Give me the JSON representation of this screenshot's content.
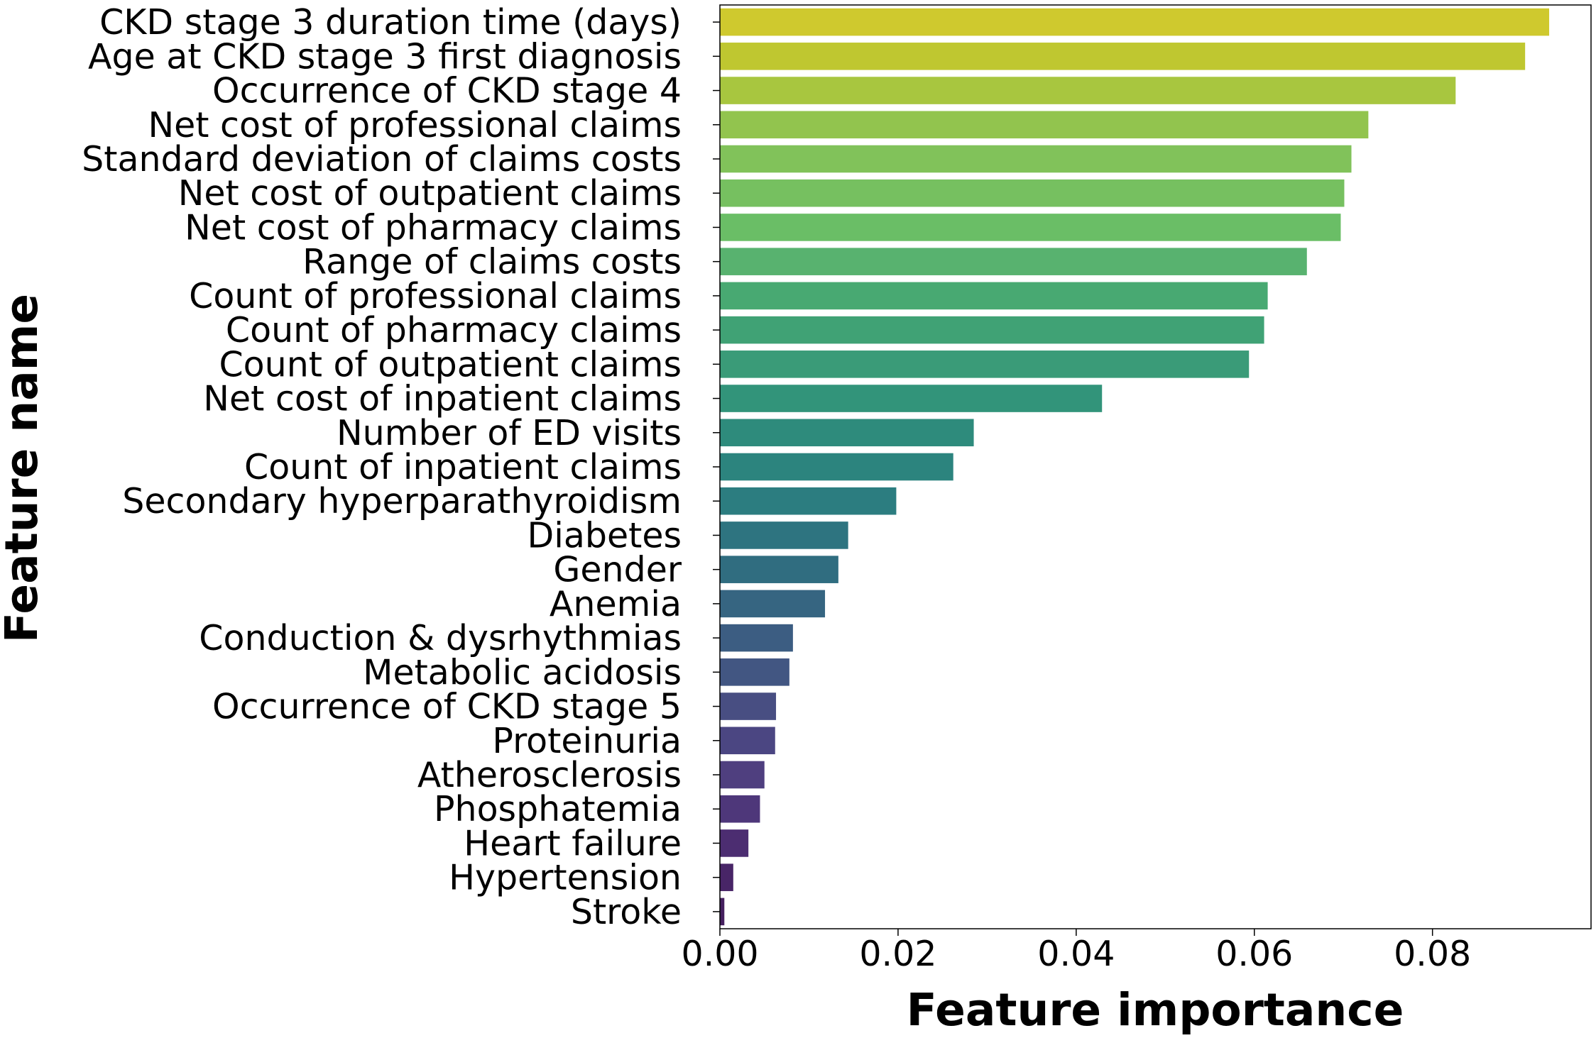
{
  "chart_data": {
    "type": "barh",
    "xlabel": "Feature importance",
    "ylabel": "Feature name",
    "categories": [
      "CKD stage 3 duration time (days)",
      "Age at CKD stage 3 first diagnosis",
      "Occurrence of CKD stage 4",
      "Net cost of professional claims",
      "Standard deviation of claims costs",
      "Net cost of outpatient claims",
      "Net cost of pharmacy claims",
      "Range of claims costs",
      "Count of professional claims",
      "Count of pharmacy claims",
      "Count of outpatient claims",
      "Net cost of inpatient claims",
      "Number of ED visits",
      "Count of inpatient claims",
      "Secondary hyperparathyroidism",
      "Diabetes",
      "Gender",
      "Anemia",
      "Conduction & dysrhythmias",
      "Metabolic acidosis",
      "Occurrence of CKD stage 5",
      "Proteinuria",
      "Atherosclerosis",
      "Phosphatemia",
      "Heart failure",
      "Hypertension",
      "Stroke"
    ],
    "values": [
      0.0931,
      0.0904,
      0.0826,
      0.0728,
      0.0709,
      0.0701,
      0.0697,
      0.0659,
      0.0615,
      0.0611,
      0.0594,
      0.0429,
      0.0285,
      0.0262,
      0.0198,
      0.0144,
      0.0133,
      0.0118,
      0.0082,
      0.0078,
      0.0063,
      0.0062,
      0.005,
      0.0045,
      0.0032,
      0.0015,
      0.0005
    ],
    "colors": [
      "#cfc92e",
      "#bfc730",
      "#a8c63f",
      "#92c44e",
      "#81c25a",
      "#76c060",
      "#6abe66",
      "#58b26f",
      "#48a972",
      "#40a275",
      "#3a9b78",
      "#32947a",
      "#2e8b7c",
      "#2c847e",
      "#2c7d80",
      "#2e7480",
      "#306d80",
      "#366581",
      "#3c5d82",
      "#425682",
      "#484e82",
      "#4b4682",
      "#4f3f7f",
      "#4e377a",
      "#4c2d71",
      "#482567",
      "#45205f"
    ],
    "xlim": [
      0,
      0.0978
    ],
    "xticks": [
      {
        "value": 0,
        "label": "0.00"
      },
      {
        "value": 0.02,
        "label": "0.02"
      },
      {
        "value": 0.04,
        "label": "0.04"
      },
      {
        "value": 0.06,
        "label": "0.06"
      },
      {
        "value": 0.08,
        "label": "0.08"
      }
    ]
  }
}
